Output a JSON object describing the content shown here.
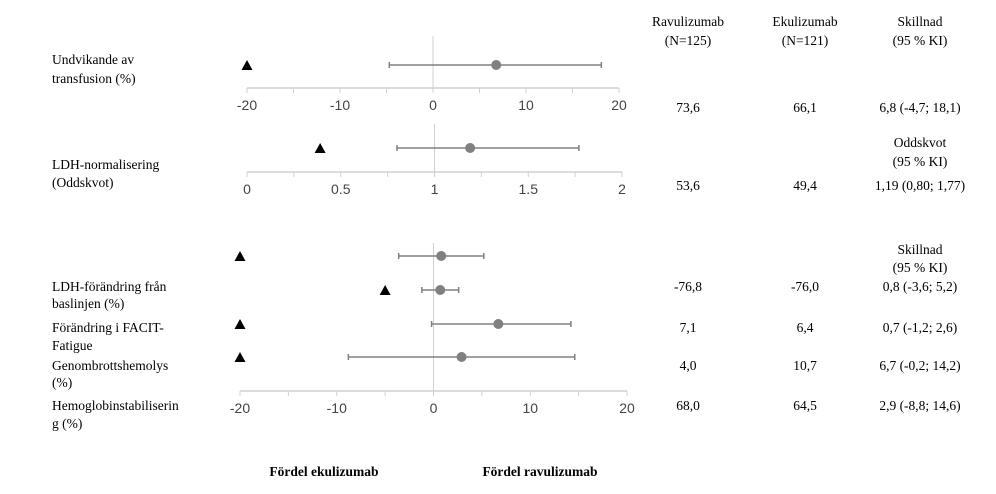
{
  "header": {
    "col1": [
      "Ravulizumab",
      "(N=125)"
    ],
    "col2": [
      "Ekulizumab",
      "(N=121)"
    ],
    "col3": [
      "Skillnad",
      "(95 % KI)"
    ]
  },
  "rows": [
    {
      "label": [
        "Undvikande av",
        "transfusion (%)"
      ],
      "ravulizumab": "73,6",
      "ekulizumab": "66,1",
      "effect": "6,8 (-4,7; 18,1)"
    },
    {
      "subheader": [
        "Oddskvot",
        "(95 % KI)"
      ],
      "label": [
        "LDH-normalisering",
        "(Oddskvot)"
      ],
      "ravulizumab": "53,6",
      "ekulizumab": "49,4",
      "effect": "1,19 (0,80; 1,77)"
    },
    {
      "subheader": [
        "Skillnad",
        "(95 % KI)"
      ],
      "label": [
        "LDH-förändring från",
        "baslinjen (%)"
      ],
      "ravulizumab": "-76,8",
      "ekulizumab": "-76,0",
      "effect": "0,8 (-3,6; 5,2)"
    },
    {
      "label": [
        "Förändring i FACIT-",
        "Fatigue"
      ],
      "ravulizumab": "7,1",
      "ekulizumab": "6,4",
      "effect": "0,7 (-1,2; 2,6)"
    },
    {
      "label": [
        "Genombrottshemolys",
        "(%)"
      ],
      "ravulizumab": "4,0",
      "ekulizumab": "10,7",
      "effect": "6,7 (-0,2; 14,2)"
    },
    {
      "label": [
        "Hemoglobinstabiliserin",
        "g (%)"
      ],
      "ravulizumab": "68,0",
      "ekulizumab": "64,5",
      "effect": "2,9 (-8,8; 14,6)"
    }
  ],
  "footer": {
    "left": "Fördel ekulizumab",
    "right": "Fördel ravulizumab"
  },
  "colors": {
    "point": "#808080",
    "ci": "#808080",
    "axis": "#d0d0d0",
    "triangle": "#000000"
  },
  "chart_data": [
    {
      "type": "scatter",
      "subtype": "forest",
      "xlim": [
        -20,
        20
      ],
      "ticks": [
        -20,
        -10,
        0,
        10,
        20
      ],
      "tick_labels": [
        "-20",
        "-10",
        "0",
        "10",
        "20"
      ],
      "minor_ticks": [
        -15,
        -5,
        5,
        15
      ],
      "reference": 0,
      "points": [
        {
          "estimate": 6.8,
          "lower": -4.7,
          "upper": 18.1,
          "triangle": -20
        }
      ]
    },
    {
      "type": "scatter",
      "subtype": "forest",
      "xlim": [
        0,
        2
      ],
      "ticks": [
        0,
        0.5,
        1,
        1.5,
        2
      ],
      "tick_labels": [
        "0",
        "0.5",
        "1",
        "1.5",
        "2"
      ],
      "minor_ticks": [
        0.25,
        0.75,
        1.25,
        1.75
      ],
      "reference": 1,
      "points": [
        {
          "estimate": 1.19,
          "lower": 0.8,
          "upper": 1.77,
          "triangle": 0.39
        }
      ]
    },
    {
      "type": "scatter",
      "subtype": "forest",
      "xlim": [
        -20,
        20
      ],
      "ticks": [
        -20,
        -10,
        0,
        10,
        20
      ],
      "tick_labels": [
        "-20",
        "-10",
        "0",
        "10",
        "20"
      ],
      "minor_ticks": [
        -15,
        -5,
        5,
        15
      ],
      "reference": 0,
      "points": [
        {
          "estimate": 0.8,
          "lower": -3.6,
          "upper": 5.2,
          "triangle": -20
        },
        {
          "estimate": 0.7,
          "lower": -1.2,
          "upper": 2.6,
          "triangle": -5
        },
        {
          "estimate": 6.7,
          "lower": -0.2,
          "upper": 14.2,
          "triangle": -20
        },
        {
          "estimate": 2.9,
          "lower": -8.8,
          "upper": 14.6,
          "triangle": -20
        }
      ]
    }
  ]
}
